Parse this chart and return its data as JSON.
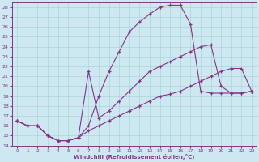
{
  "xlabel": "Windchill (Refroidissement éolien,°C)",
  "bg_color": "#cde8f0",
  "line_color": "#883388",
  "grid_color": "#aad4dc",
  "xlim": [
    -0.5,
    23.5
  ],
  "ylim": [
    14,
    28.5
  ],
  "yticks": [
    14,
    15,
    16,
    17,
    18,
    19,
    20,
    21,
    22,
    23,
    24,
    25,
    26,
    27,
    28
  ],
  "xticks": [
    0,
    1,
    2,
    3,
    4,
    5,
    6,
    7,
    8,
    9,
    10,
    11,
    12,
    13,
    14,
    15,
    16,
    17,
    18,
    19,
    20,
    21,
    22,
    23
  ],
  "curve1_x": [
    0,
    1,
    2,
    3,
    4,
    5,
    6,
    7,
    8,
    9,
    10,
    11,
    12,
    13,
    14,
    15,
    16,
    17,
    18,
    19,
    20,
    21,
    22,
    23
  ],
  "curve1_y": [
    16.5,
    16.0,
    16.0,
    15.0,
    14.5,
    14.5,
    14.8,
    16.0,
    19.0,
    21.5,
    23.5,
    25.5,
    26.5,
    27.3,
    28.0,
    28.2,
    28.2,
    26.3,
    19.5,
    19.3,
    19.3,
    19.3,
    19.3,
    19.5
  ],
  "curve2_x": [
    0,
    1,
    2,
    3,
    4,
    5,
    6,
    7,
    8,
    9,
    10,
    11,
    12,
    13,
    14,
    15,
    16,
    17,
    18,
    19,
    20,
    21,
    22,
    23
  ],
  "curve2_y": [
    16.5,
    16.0,
    16.0,
    15.0,
    14.5,
    14.5,
    14.8,
    21.5,
    16.8,
    17.5,
    18.5,
    19.5,
    20.5,
    21.5,
    22.0,
    22.5,
    23.0,
    23.5,
    24.0,
    24.2,
    20.0,
    19.3,
    19.3,
    19.5
  ],
  "curve3_x": [
    0,
    1,
    2,
    3,
    4,
    5,
    6,
    7,
    8,
    9,
    10,
    11,
    12,
    13,
    14,
    15,
    16,
    17,
    18,
    19,
    20,
    21,
    22,
    23
  ],
  "curve3_y": [
    16.5,
    16.0,
    16.0,
    15.0,
    14.5,
    14.5,
    14.8,
    15.5,
    16.0,
    16.5,
    17.0,
    17.5,
    18.0,
    18.5,
    19.0,
    19.2,
    19.5,
    20.0,
    20.5,
    21.0,
    21.5,
    21.8,
    21.8,
    19.5
  ]
}
